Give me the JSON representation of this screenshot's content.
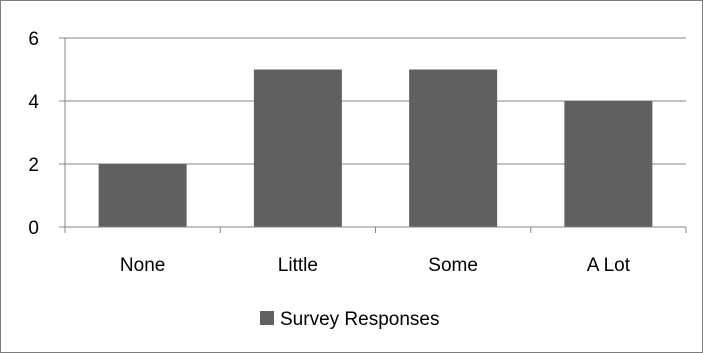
{
  "chart_data": {
    "type": "bar",
    "categories": [
      "None",
      "Little",
      "Some",
      "A Lot"
    ],
    "series": [
      {
        "name": "Survey Responses",
        "values": [
          2,
          5,
          5,
          4
        ],
        "color": "#606060"
      }
    ],
    "ylim": [
      0,
      6
    ],
    "yticks": [
      0,
      2,
      4,
      6
    ],
    "grid": true,
    "legend_position": "bottom",
    "axis_color": "#868686",
    "grid_color": "#868686"
  }
}
